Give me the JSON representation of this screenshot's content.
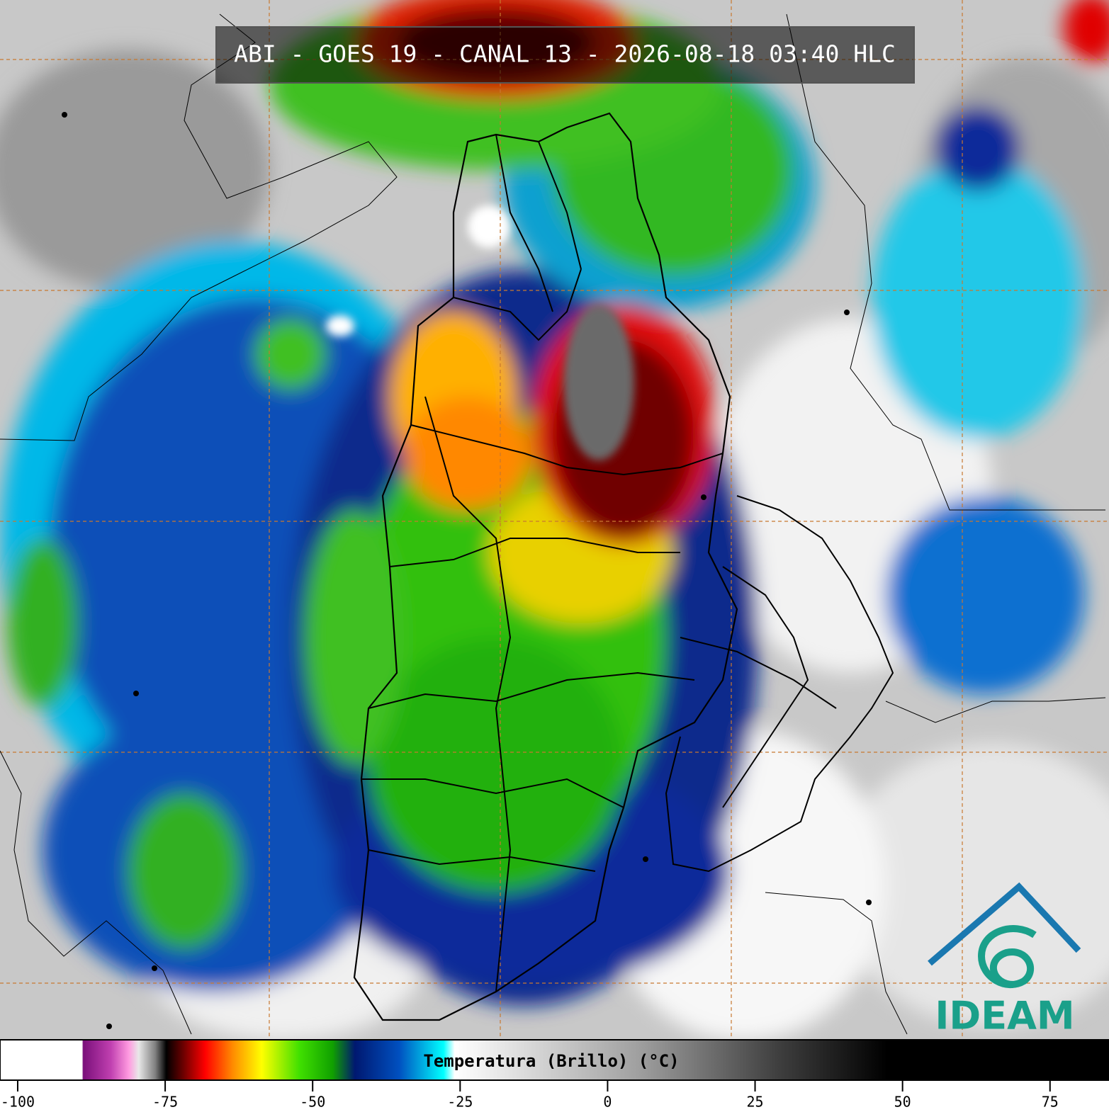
{
  "header": {
    "title": "ABI - GOES 19 - CANAL 13 - 2026-08-18 03:40 HLC"
  },
  "colorbar": {
    "label": "Temperatura (Brillo) (°C)",
    "xlim": [
      -103,
      85
    ],
    "xticks": [
      -100,
      -75,
      -50,
      -25,
      0,
      25,
      50,
      75
    ]
  },
  "logo": {
    "text": "IDEAM"
  }
}
